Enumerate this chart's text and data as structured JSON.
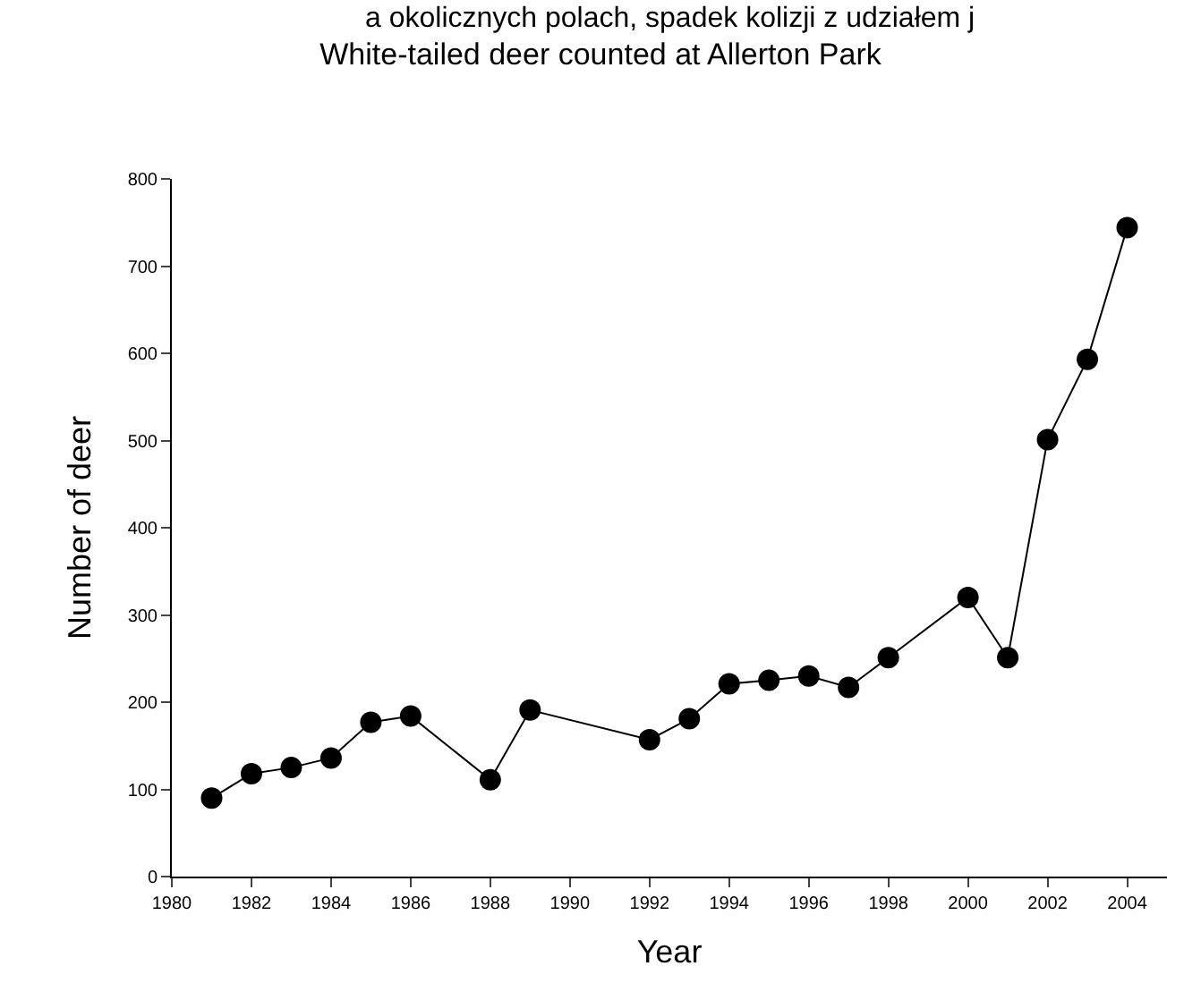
{
  "chart_data": {
    "type": "line",
    "title": "White-tailed deer counted at Allerton Park",
    "xlabel": "Year",
    "ylabel": "Number of deer",
    "annotations": [
      "a okolicznych polach, spadek kolizji z udziałem j"
    ],
    "x": [
      1981,
      1982,
      1983,
      1984,
      1985,
      1986,
      1988,
      1989,
      1992,
      1993,
      1994,
      1995,
      1996,
      1997,
      1998,
      2000,
      2001,
      2002,
      2003,
      2004
    ],
    "series": [
      {
        "color": "#000000",
        "values": [
          90,
          118,
          125,
          136,
          177,
          184,
          111,
          191,
          157,
          181,
          221,
          225,
          230,
          217,
          251,
          320,
          251,
          501,
          593,
          744
        ]
      }
    ],
    "xlim": [
      1980,
      2005
    ],
    "xticks": [
      1980,
      1982,
      1984,
      1986,
      1988,
      1990,
      1992,
      1994,
      1996,
      1998,
      2000,
      2002,
      2004
    ],
    "ylim": [
      0,
      800
    ],
    "yticks": [
      0,
      100,
      200,
      300,
      400,
      500,
      600,
      700,
      800
    ],
    "marker": "circle",
    "line_style": "solid"
  }
}
